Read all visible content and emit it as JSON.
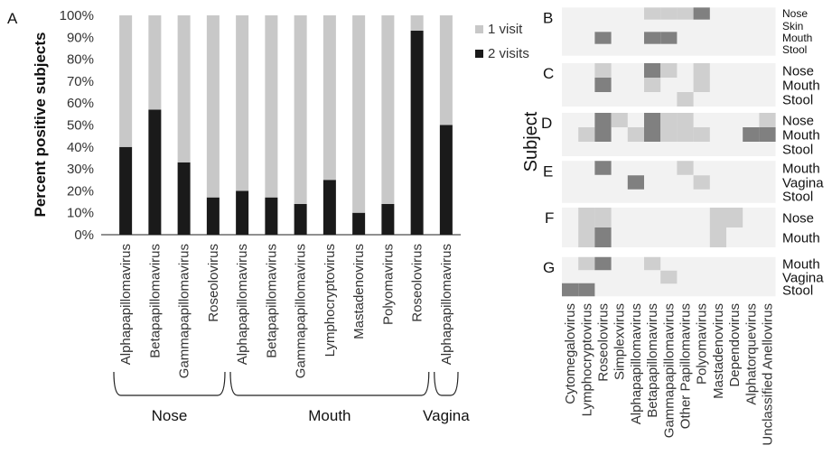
{
  "chart_data": [
    {
      "panel": "A",
      "type": "bar",
      "stacked": true,
      "ylabel": "Percent positive subjects",
      "ylim": [
        0,
        100
      ],
      "yticks": [
        "0%",
        "10%",
        "20%",
        "30%",
        "40%",
        "50%",
        "60%",
        "70%",
        "80%",
        "90%",
        "100%"
      ],
      "categories": [
        "Alphapapillomavirus",
        "Betapapillomavirus",
        "Gammapapillomavirus",
        "Roseolovirus",
        "Alphapapillomavirus",
        "Betapapillomavirus",
        "Gammapapillomavirus",
        "Lymphocryptovirus",
        "Mastadenovirus",
        "Polyomavirus",
        "Roseolovirus",
        "Alphapapillomavirus"
      ],
      "groups": [
        {
          "name": "Nose",
          "count": 4
        },
        {
          "name": "Mouth",
          "count": 7
        },
        {
          "name": "Vagina",
          "count": 1
        }
      ],
      "series": [
        {
          "name": "2 visits",
          "color": "#1a1a1a",
          "values": [
            40,
            57,
            33,
            17,
            20,
            17,
            14,
            25,
            10,
            14,
            93,
            50
          ]
        },
        {
          "name": "1 visit",
          "color": "#c8c8c8",
          "values": [
            60,
            43,
            67,
            83,
            80,
            83,
            86,
            75,
            90,
            86,
            7,
            50
          ]
        }
      ],
      "legend_position": "top-right"
    },
    {
      "panel": "B-G",
      "type": "heatmap",
      "ylabel": "Subject",
      "columns": [
        "Cytomegalovirus",
        "Lymphocryptovirus",
        "Roseolovirus",
        "Simplexvirus",
        "Alphapapillomavirus",
        "Betapapillomavirus",
        "Gammapapillomavirus",
        "Other Papillomavirus",
        "Polyomavirus",
        "Mastadenovirus",
        "Dependovirus",
        "Alphatorquevirus",
        "Unclassified  Anellovirus"
      ],
      "levels": {
        "0": "#f2f2f2",
        "1": "#cfcfcf",
        "2": "#808080"
      },
      "subjects": [
        {
          "label": "B",
          "sites": [
            "Nose",
            "Skin",
            "Mouth",
            "Stool"
          ],
          "grid": [
            [
              0,
              0,
              0,
              0,
              0,
              1,
              1,
              1,
              2,
              0,
              0,
              0,
              0
            ],
            [
              0,
              0,
              0,
              0,
              0,
              0,
              0,
              0,
              0,
              0,
              0,
              0,
              0
            ],
            [
              0,
              0,
              2,
              0,
              0,
              2,
              2,
              0,
              0,
              0,
              0,
              0,
              0
            ],
            [
              0,
              0,
              0,
              0,
              0,
              0,
              0,
              0,
              0,
              0,
              0,
              0,
              0
            ]
          ]
        },
        {
          "label": "C",
          "sites": [
            "Nose",
            "Mouth",
            "Stool"
          ],
          "grid": [
            [
              0,
              0,
              1,
              0,
              0,
              2,
              1,
              0,
              1,
              0,
              0,
              0,
              0
            ],
            [
              0,
              0,
              2,
              0,
              0,
              1,
              0,
              0,
              1,
              0,
              0,
              0,
              0
            ],
            [
              0,
              0,
              0,
              0,
              0,
              0,
              0,
              1,
              0,
              0,
              0,
              0,
              0
            ]
          ]
        },
        {
          "label": "D",
          "sites": [
            "Nose",
            "Mouth",
            "Stool"
          ],
          "grid": [
            [
              0,
              0,
              2,
              1,
              0,
              2,
              1,
              1,
              0,
              0,
              0,
              0,
              1
            ],
            [
              0,
              1,
              2,
              0,
              1,
              2,
              1,
              1,
              1,
              0,
              0,
              2,
              2
            ],
            [
              0,
              0,
              0,
              0,
              0,
              0,
              0,
              0,
              0,
              0,
              0,
              0,
              0
            ]
          ]
        },
        {
          "label": "E",
          "sites": [
            "Mouth",
            "Vagina",
            "Stool"
          ],
          "grid": [
            [
              0,
              0,
              2,
              0,
              0,
              0,
              0,
              1,
              0,
              0,
              0,
              0,
              0
            ],
            [
              0,
              0,
              0,
              0,
              2,
              0,
              0,
              0,
              1,
              0,
              0,
              0,
              0
            ],
            [
              0,
              0,
              0,
              0,
              0,
              0,
              0,
              0,
              0,
              0,
              0,
              0,
              0
            ]
          ]
        },
        {
          "label": "F",
          "sites": [
            "Nose",
            "Mouth"
          ],
          "grid": [
            [
              0,
              1,
              1,
              0,
              0,
              0,
              0,
              0,
              0,
              1,
              1,
              0,
              0
            ],
            [
              0,
              1,
              2,
              0,
              0,
              0,
              0,
              0,
              0,
              1,
              0,
              0,
              0
            ]
          ]
        },
        {
          "label": "G",
          "sites": [
            "Mouth",
            "Vagina",
            "Stool"
          ],
          "grid": [
            [
              0,
              1,
              2,
              0,
              0,
              1,
              0,
              0,
              0,
              0,
              0,
              0,
              0
            ],
            [
              0,
              0,
              0,
              0,
              0,
              0,
              1,
              0,
              0,
              0,
              0,
              0,
              0
            ],
            [
              2,
              2,
              0,
              0,
              0,
              0,
              0,
              0,
              0,
              0,
              0,
              0,
              0
            ]
          ]
        }
      ]
    }
  ]
}
